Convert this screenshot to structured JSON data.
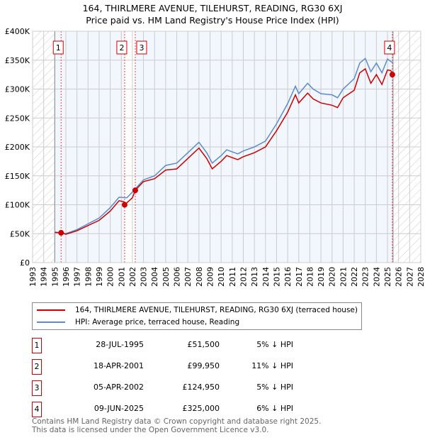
{
  "chart_data": {
    "type": "line",
    "title": "164, THIRLMERE AVENUE, TILEHURST, READING, RG30 6XJ",
    "subtitle": "Price paid vs. HM Land Registry's House Price Index (HPI)",
    "xlim": [
      1993,
      2028
    ],
    "ylim": [
      0,
      400000
    ],
    "data_range": [
      1995,
      2025.5
    ],
    "x_ticks": [
      "1993",
      "1994",
      "1995",
      "1996",
      "1997",
      "1998",
      "1999",
      "2000",
      "2001",
      "2002",
      "2003",
      "2004",
      "2005",
      "2006",
      "2007",
      "2008",
      "2009",
      "2010",
      "2011",
      "2012",
      "2013",
      "2014",
      "2015",
      "2016",
      "2017",
      "2018",
      "2019",
      "2020",
      "2021",
      "2022",
      "2023",
      "2024",
      "2025",
      "2026",
      "2027",
      "2028"
    ],
    "y_ticks": [
      {
        "v": 0,
        "label": "£0"
      },
      {
        "v": 50000,
        "label": "£50K"
      },
      {
        "v": 100000,
        "label": "£100K"
      },
      {
        "v": 150000,
        "label": "£150K"
      },
      {
        "v": 200000,
        "label": "£200K"
      },
      {
        "v": 250000,
        "label": "£250K"
      },
      {
        "v": 300000,
        "label": "£300K"
      },
      {
        "v": 350000,
        "label": "£350K"
      },
      {
        "v": 400000,
        "label": "£400K"
      }
    ],
    "series": [
      {
        "name": "164, THIRLMERE AVENUE, TILEHURST, READING, RG30 6XJ (terraced house)",
        "color": "#cc0000",
        "x": [
          1995,
          1995.57,
          1996,
          1997,
          1998,
          1999,
          2000,
          2000.8,
          2001.25,
          2001.3,
          2002,
          2002.26,
          2003,
          2004,
          2005,
          2006,
          2007,
          2008,
          2008.7,
          2009.2,
          2010,
          2010.5,
          2011.5,
          2012,
          2013,
          2014,
          2015,
          2016,
          2016.7,
          2017,
          2017.8,
          2018.3,
          2019,
          2020,
          2020.5,
          2021,
          2022,
          2022.5,
          2023,
          2023.5,
          2024,
          2024.5,
          2025,
          2025.3,
          2025.44
        ],
        "y": [
          52000,
          51500,
          49000,
          55000,
          64000,
          73000,
          89000,
          107000,
          105000,
          99950,
          112000,
          124950,
          140000,
          145000,
          160000,
          162000,
          180000,
          198000,
          180000,
          162000,
          175000,
          185000,
          178000,
          183000,
          190000,
          200000,
          228000,
          260000,
          290000,
          276000,
          293000,
          283000,
          276000,
          272000,
          268000,
          285000,
          298000,
          328000,
          335000,
          310000,
          325000,
          308000,
          333000,
          332000,
          325000
        ]
      },
      {
        "name": "HPI: Average price, terraced house, Reading",
        "color": "#5b8bd0",
        "x": [
          1995,
          1996,
          1997,
          1998,
          1999,
          2000,
          2000.8,
          2001.5,
          2002,
          2003,
          2004,
          2005,
          2006,
          2007,
          2008,
          2008.7,
          2009.2,
          2010,
          2010.5,
          2011.5,
          2012,
          2013,
          2014,
          2015,
          2016,
          2016.7,
          2017,
          2017.8,
          2018.3,
          2019,
          2020,
          2020.5,
          2021,
          2022,
          2022.5,
          2023,
          2023.5,
          2024,
          2024.5,
          2025,
          2025.5
        ],
        "y": [
          53000,
          50000,
          57000,
          67000,
          77000,
          95000,
          113000,
          112000,
          122000,
          143000,
          150000,
          168000,
          172000,
          190000,
          208000,
          190000,
          172000,
          185000,
          195000,
          188000,
          193000,
          200000,
          210000,
          240000,
          275000,
          305000,
          292000,
          310000,
          300000,
          292000,
          290000,
          285000,
          300000,
          318000,
          345000,
          353000,
          330000,
          345000,
          328000,
          352000,
          345000
        ]
      }
    ],
    "sales": [
      {
        "n": "1",
        "x": 1995.57,
        "date": "28-JUL-1995",
        "price": "£51,500",
        "hpi": "5% ↓ HPI",
        "v": 51500
      },
      {
        "n": "2",
        "x": 2001.3,
        "date": "18-APR-2001",
        "price": "£99,950",
        "hpi": "11% ↓ HPI",
        "v": 99950
      },
      {
        "n": "3",
        "x": 2002.26,
        "date": "05-APR-2002",
        "price": "£124,950",
        "hpi": "5% ↓ HPI",
        "v": 124950
      },
      {
        "n": "4",
        "x": 2025.44,
        "date": "09-JUN-2025",
        "price": "£325,000",
        "hpi": "6% ↓ HPI",
        "v": 325000
      }
    ]
  },
  "legend": {
    "red": "164, THIRLMERE AVENUE, TILEHURST, READING, RG30 6XJ (terraced house)",
    "blue": "HPI: Average price, terraced house, Reading"
  },
  "footer": {
    "line1": "Contains HM Land Registry data © Crown copyright and database right 2025.",
    "line2": "This data is licensed under the Open Government Licence v3.0."
  }
}
